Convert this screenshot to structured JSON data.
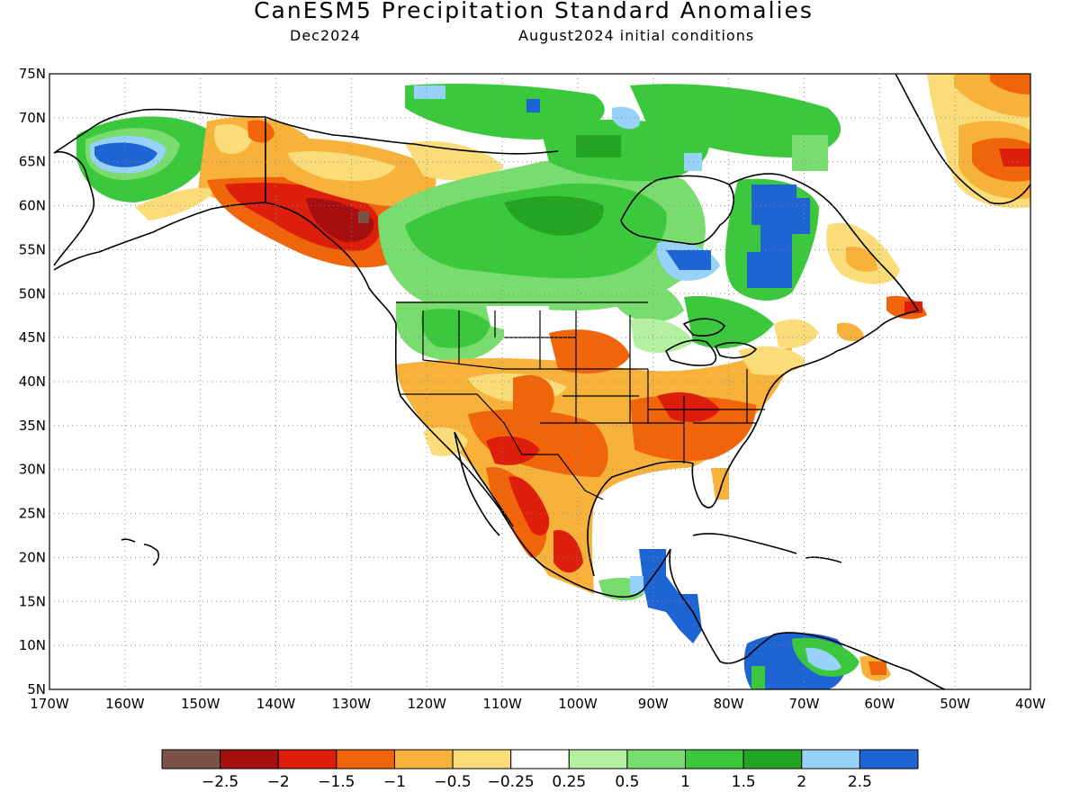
{
  "title": "CanESM5 Precipitation Standard Anomalies",
  "subtitle_left": "Dec2024",
  "subtitle_right": "August2024 initial conditions",
  "lat_labels": [
    "75N",
    "70N",
    "65N",
    "60N",
    "55N",
    "50N",
    "45N",
    "40N",
    "35N",
    "30N",
    "25N",
    "20N",
    "15N",
    "10N",
    "5N"
  ],
  "lon_labels": [
    "170W",
    "160W",
    "150W",
    "140W",
    "130W",
    "120W",
    "110W",
    "100W",
    "90W",
    "80W",
    "70W",
    "60W",
    "50W",
    "40W"
  ],
  "colorbar": {
    "colors": [
      "#7a5248",
      "#a50f0f",
      "#dc1e0a",
      "#f0640a",
      "#f7b23c",
      "#fadc78",
      "#ffffff",
      "#b4f0a0",
      "#78dc6e",
      "#3cc83c",
      "#23a523",
      "#96d2fa",
      "#1e64d2"
    ],
    "labels": [
      "−2.5",
      "−2",
      "−1.5",
      "−1",
      "−0.5",
      "−0.25",
      "0.25",
      "0.5",
      "1",
      "1.5",
      "2",
      "2.5"
    ]
  }
}
